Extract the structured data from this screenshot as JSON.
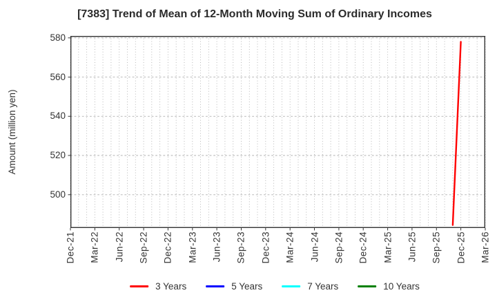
{
  "chart_data": {
    "type": "line",
    "title": "[7383]  Trend of Mean of 12-Month Moving Sum of Ordinary Incomes",
    "ylabel": "Amount (million yen)",
    "xlabel": "",
    "x_range": [
      "Dec-21",
      "Mar-26"
    ],
    "x_tick_labels": [
      "Dec-21",
      "Mar-22",
      "Jun-22",
      "Sep-22",
      "Dec-22",
      "Mar-23",
      "Jun-23",
      "Sep-23",
      "Dec-23",
      "Mar-24",
      "Jun-24",
      "Sep-24",
      "Dec-24",
      "Mar-25",
      "Jun-25",
      "Sep-25",
      "Dec-25",
      "Mar-26"
    ],
    "x_minor_grid": "monthly",
    "yticks": [
      500,
      520,
      540,
      560,
      580
    ],
    "ylim": [
      483,
      581
    ],
    "grid": true,
    "legend_position": "bottom",
    "series": [
      {
        "name": "3 Years",
        "color": "#ff0000",
        "points": [
          {
            "x": "Nov-25",
            "y": 484.5
          },
          {
            "x": "Dec-25",
            "y": 578
          }
        ]
      },
      {
        "name": "5 Years",
        "color": "#0000ff",
        "points": []
      },
      {
        "name": "7 Years",
        "color": "#00ffff",
        "points": []
      },
      {
        "name": "10 Years",
        "color": "#008000",
        "points": []
      }
    ]
  },
  "colors": {
    "background": "#ffffff",
    "text": "#333333",
    "grid": "#b0b0b0",
    "spine": "#333333"
  }
}
